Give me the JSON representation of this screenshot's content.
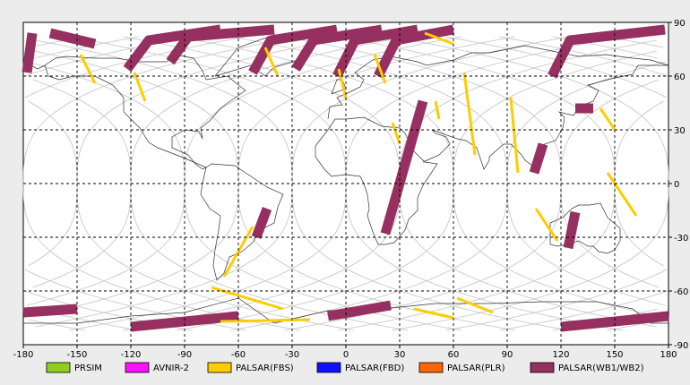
{
  "map": {
    "x_axis": {
      "min": -180,
      "max": 180,
      "ticks": [
        "-180",
        "-150",
        "-120",
        "-90",
        "-60",
        "-30",
        "0",
        "30",
        "60",
        "90",
        "120",
        "150",
        "180"
      ]
    },
    "y_axis": {
      "min": -90,
      "max": 90,
      "ticks": [
        "90",
        "60",
        "30",
        "0",
        "-30",
        "-60",
        "-90"
      ]
    },
    "grid": true,
    "orbit_tracks_shown": true
  },
  "legend": [
    {
      "label": "PRSIM",
      "color": "#8fce1c"
    },
    {
      "label": "AVNIR-2",
      "color": "#ff10ff"
    },
    {
      "label": "PALSAR(FBS)",
      "color": "#ffcc00"
    },
    {
      "label": "PALSAR(FBD)",
      "color": "#1010ff"
    },
    {
      "label": "PALSAR(PLR)",
      "color": "#ff6600"
    },
    {
      "label": "PALSAR(WB1/WB2)",
      "color": "#963060"
    }
  ],
  "swaths": [
    {
      "sensor": "PALSAR(WB1/WB2)",
      "path": [
        [
          -175,
          84
        ],
        [
          -178,
          62
        ]
      ]
    },
    {
      "sensor": "PALSAR(WB1/WB2)",
      "path": [
        [
          -165,
          84
        ],
        [
          -140,
          78
        ]
      ]
    },
    {
      "sensor": "PALSAR(WB1/WB2)",
      "path": [
        [
          -122,
          64
        ],
        [
          -110,
          80
        ],
        [
          -70,
          86
        ]
      ]
    },
    {
      "sensor": "PALSAR(WB1/WB2)",
      "path": [
        [
          -98,
          68
        ],
        [
          -88,
          82
        ],
        [
          -40,
          86
        ]
      ]
    },
    {
      "sensor": "PALSAR(WB1/WB2)",
      "path": [
        [
          -52,
          62
        ],
        [
          -42,
          80
        ],
        [
          -5,
          86
        ]
      ]
    },
    {
      "sensor": "PALSAR(WB1/WB2)",
      "path": [
        [
          -28,
          64
        ],
        [
          -18,
          80
        ],
        [
          20,
          86
        ]
      ]
    },
    {
      "sensor": "PALSAR(WB1/WB2)",
      "path": [
        [
          -5,
          60
        ],
        [
          5,
          80
        ],
        [
          40,
          86
        ]
      ]
    },
    {
      "sensor": "PALSAR(WB1/WB2)",
      "path": [
        [
          18,
          60
        ],
        [
          28,
          80
        ],
        [
          60,
          86
        ]
      ]
    },
    {
      "sensor": "PALSAR(WB1/WB2)",
      "path": [
        [
          43,
          46
        ],
        [
          22,
          -28
        ]
      ]
    },
    {
      "sensor": "PALSAR(WB1/WB2)",
      "path": [
        [
          115,
          60
        ],
        [
          125,
          80
        ],
        [
          178,
          86
        ]
      ]
    },
    {
      "sensor": "PALSAR(WB1/WB2)",
      "path": [
        [
          128,
          42
        ],
        [
          138,
          42
        ]
      ]
    },
    {
      "sensor": "PALSAR(WB1/WB2)",
      "path": [
        [
          110,
          22
        ],
        [
          105,
          6
        ]
      ]
    },
    {
      "sensor": "PALSAR(WB1/WB2)",
      "path": [
        [
          128,
          -16
        ],
        [
          124,
          -36
        ]
      ]
    },
    {
      "sensor": "PALSAR(WB1/WB2)",
      "path": [
        [
          -44,
          -14
        ],
        [
          -50,
          -30
        ]
      ]
    },
    {
      "sensor": "PALSAR(WB1/WB2)",
      "path": [
        [
          -180,
          -72
        ],
        [
          -150,
          -70
        ]
      ]
    },
    {
      "sensor": "PALSAR(WB1/WB2)",
      "path": [
        [
          -120,
          -80
        ],
        [
          -60,
          -74
        ]
      ]
    },
    {
      "sensor": "PALSAR(WB1/WB2)",
      "path": [
        [
          -10,
          -74
        ],
        [
          25,
          -68
        ]
      ]
    },
    {
      "sensor": "PALSAR(WB1/WB2)",
      "path": [
        [
          120,
          -80
        ],
        [
          180,
          -74
        ]
      ]
    },
    {
      "sensor": "PALSAR(FBS)",
      "path": [
        [
          -148,
          72
        ],
        [
          -140,
          56
        ]
      ]
    },
    {
      "sensor": "PALSAR(FBS)",
      "path": [
        [
          -118,
          62
        ],
        [
          -112,
          46
        ]
      ]
    },
    {
      "sensor": "PALSAR(FBS)",
      "path": [
        [
          -45,
          76
        ],
        [
          -38,
          60
        ]
      ]
    },
    {
      "sensor": "PALSAR(FBS)",
      "path": [
        [
          -4,
          64
        ],
        [
          0,
          48
        ]
      ]
    },
    {
      "sensor": "PALSAR(FBS)",
      "path": [
        [
          16,
          72
        ],
        [
          22,
          56
        ]
      ]
    },
    {
      "sensor": "PALSAR(FBS)",
      "path": [
        [
          44,
          84
        ],
        [
          60,
          78
        ]
      ]
    },
    {
      "sensor": "PALSAR(FBS)",
      "path": [
        [
          50,
          46
        ],
        [
          52,
          36
        ]
      ]
    },
    {
      "sensor": "PALSAR(FBS)",
      "path": [
        [
          66,
          62
        ],
        [
          72,
          16
        ]
      ]
    },
    {
      "sensor": "PALSAR(FBS)",
      "path": [
        [
          92,
          48
        ],
        [
          96,
          6
        ]
      ]
    },
    {
      "sensor": "PALSAR(FBS)",
      "path": [
        [
          142,
          42
        ],
        [
          150,
          30
        ]
      ]
    },
    {
      "sensor": "PALSAR(FBS)",
      "path": [
        [
          146,
          6
        ],
        [
          162,
          -18
        ]
      ]
    },
    {
      "sensor": "PALSAR(FBS)",
      "path": [
        [
          26,
          34
        ],
        [
          30,
          22
        ]
      ]
    },
    {
      "sensor": "PALSAR(FBS)",
      "path": [
        [
          -52,
          -24
        ],
        [
          -68,
          -52
        ]
      ]
    },
    {
      "sensor": "PALSAR(FBS)",
      "path": [
        [
          -75,
          -58
        ],
        [
          -35,
          -70
        ]
      ]
    },
    {
      "sensor": "PALSAR(FBS)",
      "path": [
        [
          -70,
          -77
        ],
        [
          -20,
          -76
        ]
      ]
    },
    {
      "sensor": "PALSAR(FBS)",
      "path": [
        [
          38,
          -70
        ],
        [
          60,
          -75
        ]
      ]
    },
    {
      "sensor": "PALSAR(FBS)",
      "path": [
        [
          62,
          -64
        ],
        [
          82,
          -72
        ]
      ]
    },
    {
      "sensor": "PALSAR(FBS)",
      "path": [
        [
          106,
          -14
        ],
        [
          118,
          -32
        ]
      ]
    }
  ]
}
